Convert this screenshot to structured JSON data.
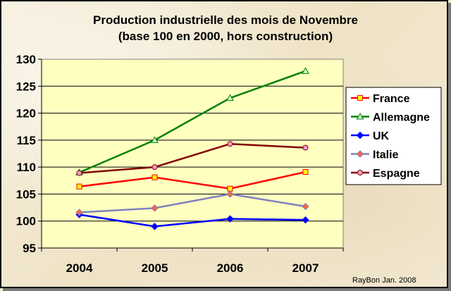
{
  "chart_data": {
    "type": "line",
    "title": "Production industrielle des mois de Novembre",
    "subtitle": "(base 100 en 2000, hors construction)",
    "categories": [
      "2004",
      "2005",
      "2006",
      "2007"
    ],
    "ylim": [
      95,
      130
    ],
    "yticks": [
      95,
      100,
      105,
      110,
      115,
      120,
      125,
      130
    ],
    "grid": true,
    "legend_position": "right",
    "series": [
      {
        "name": "France",
        "color": "#ff0000",
        "marker": "square",
        "marker_fill": "#ffff00",
        "values": [
          106.4,
          108.1,
          106.0,
          109.1
        ]
      },
      {
        "name": "Allemagne",
        "color": "#008000",
        "marker": "triangle",
        "marker_fill": "#ccffcc",
        "values": [
          109.0,
          115.0,
          122.8,
          127.8
        ]
      },
      {
        "name": "UK",
        "color": "#0000ff",
        "marker": "diamond",
        "marker_fill": "#0000ff",
        "values": [
          101.2,
          99.0,
          100.4,
          100.2
        ]
      },
      {
        "name": "Italie",
        "color": "#8080c0",
        "marker": "diamond",
        "marker_fill": "#ff6633",
        "values": [
          101.6,
          102.4,
          105.0,
          102.7
        ]
      },
      {
        "name": "Espagne",
        "color": "#800000",
        "marker": "circle",
        "marker_fill": "#ff99cc",
        "values": [
          108.9,
          110.0,
          114.3,
          113.6
        ]
      }
    ]
  },
  "credit": "RayBon Jan. 2008"
}
